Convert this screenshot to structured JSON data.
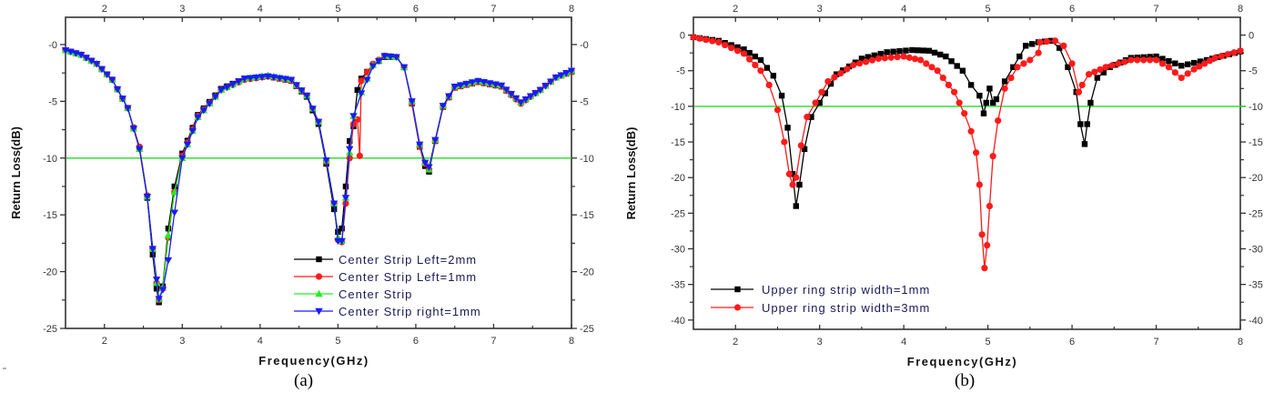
{
  "captions": {
    "a": "(a)",
    "b": "(b)"
  },
  "chart_data": [
    {
      "type": "line",
      "panel": "(a)",
      "title": "",
      "xlabel": "Frequency(GHz)",
      "ylabel": "Return Loss(dB)",
      "xlim": [
        1.5,
        8
      ],
      "ylim": [
        -25,
        2.4
      ],
      "xticks": [
        2,
        3,
        4,
        5,
        6,
        7,
        8
      ],
      "yticks": [
        0,
        -5,
        -10,
        -15,
        -20,
        -25
      ],
      "ytick_labels": [
        "-0",
        "-5",
        "-10",
        "-15",
        "-20",
        "-25"
      ],
      "right_axis_ticks": [
        "-0",
        "-5",
        "-10",
        "-15",
        "-20",
        "-25"
      ],
      "top_axis_ticks": [
        "2",
        "3",
        "4",
        "5",
        "6",
        "7",
        "8"
      ],
      "grid": false,
      "reference_line": {
        "y": -10,
        "color": "#22dd22"
      },
      "legend_position": "lower right inside",
      "series": [
        {
          "name": "Center Strip Left=2mm",
          "color": "#000000",
          "marker": "square",
          "x": [
            1.5,
            1.7,
            1.9,
            2.1,
            2.3,
            2.45,
            2.55,
            2.62,
            2.67,
            2.7,
            2.75,
            2.82,
            2.9,
            3.0,
            3.2,
            3.5,
            3.8,
            4.1,
            4.4,
            4.6,
            4.75,
            4.85,
            4.95,
            5.0,
            5.05,
            5.1,
            5.15,
            5.2,
            5.25,
            5.3,
            5.45,
            5.6,
            5.75,
            5.85,
            5.95,
            6.05,
            6.12,
            6.17,
            6.25,
            6.35,
            6.5,
            6.8,
            7.1,
            7.35,
            7.6,
            7.8,
            8.0
          ],
          "y": [
            -0.5,
            -0.9,
            -1.7,
            -3.1,
            -5.6,
            -9.2,
            -13.5,
            -18.5,
            -21.5,
            -22.7,
            -21.3,
            -16.2,
            -12.5,
            -9.6,
            -6.2,
            -3.9,
            -3.0,
            -2.8,
            -3.2,
            -4.6,
            -7.0,
            -10.5,
            -14.5,
            -16.5,
            -16.2,
            -12.5,
            -8.5,
            -7.2,
            -4.0,
            -3.0,
            -1.8,
            -1.1,
            -1.1,
            -2.0,
            -5.2,
            -9.0,
            -10.7,
            -11.2,
            -8.5,
            -5.5,
            -3.8,
            -3.3,
            -3.7,
            -5.1,
            -4.0,
            -2.9,
            -2.4
          ]
        },
        {
          "name": "Center Strip Left=1mm",
          "color": "#ff1a1a",
          "marker": "circle",
          "x": [
            1.5,
            1.7,
            1.9,
            2.1,
            2.3,
            2.45,
            2.55,
            2.62,
            2.67,
            2.7,
            2.75,
            2.82,
            2.9,
            3.0,
            3.2,
            3.5,
            3.8,
            4.1,
            4.4,
            4.6,
            4.75,
            4.85,
            4.95,
            5.0,
            5.05,
            5.1,
            5.15,
            5.2,
            5.25,
            5.28,
            5.3,
            5.45,
            5.6,
            5.75,
            5.85,
            5.95,
            6.05,
            6.12,
            6.17,
            6.25,
            6.35,
            6.5,
            6.8,
            7.1,
            7.35,
            7.6,
            7.8,
            8.0
          ],
          "y": [
            -0.5,
            -0.9,
            -1.7,
            -3.1,
            -5.6,
            -9.0,
            -13.3,
            -18.0,
            -21.0,
            -22.5,
            -21.5,
            -17.0,
            -13.0,
            -9.8,
            -6.3,
            -4.0,
            -3.1,
            -2.8,
            -3.2,
            -4.5,
            -6.8,
            -10.3,
            -14.0,
            -17.2,
            -17.4,
            -14.0,
            -10.0,
            -7.0,
            -6.6,
            -9.8,
            -3.2,
            -1.7,
            -1.0,
            -1.1,
            -2.0,
            -5.2,
            -9.0,
            -10.5,
            -11.0,
            -8.5,
            -5.5,
            -3.8,
            -3.3,
            -3.7,
            -5.2,
            -4.0,
            -2.9,
            -2.4
          ]
        },
        {
          "name": "Center Strip",
          "color": "#22ee22",
          "marker": "triangle-up",
          "x": [
            1.5,
            1.7,
            1.9,
            2.1,
            2.3,
            2.45,
            2.55,
            2.62,
            2.67,
            2.7,
            2.75,
            2.82,
            2.9,
            3.0,
            3.2,
            3.5,
            3.8,
            4.1,
            4.4,
            4.6,
            4.75,
            4.85,
            4.95,
            5.0,
            5.05,
            5.1,
            5.15,
            5.2,
            5.3,
            5.45,
            5.6,
            5.75,
            5.85,
            5.95,
            6.05,
            6.12,
            6.17,
            6.25,
            6.35,
            6.5,
            6.8,
            7.1,
            7.35,
            7.6,
            7.8,
            8.0
          ],
          "y": [
            -0.5,
            -0.9,
            -1.7,
            -3.1,
            -5.6,
            -9.2,
            -13.4,
            -18.0,
            -21.0,
            -22.4,
            -21.4,
            -16.8,
            -13.0,
            -10.0,
            -6.4,
            -4.0,
            -3.0,
            -2.7,
            -3.1,
            -4.5,
            -6.8,
            -10.2,
            -14.0,
            -17.0,
            -17.3,
            -13.5,
            -9.5,
            -6.3,
            -4.2,
            -1.8,
            -1.0,
            -1.1,
            -2.0,
            -5.0,
            -8.8,
            -10.4,
            -11.0,
            -8.4,
            -5.4,
            -3.7,
            -3.2,
            -3.6,
            -5.1,
            -4.0,
            -2.9,
            -2.3
          ]
        },
        {
          "name": "Center Strip right=1mm",
          "color": "#1a1aff",
          "marker": "triangle-down",
          "x": [
            1.5,
            1.7,
            1.9,
            2.1,
            2.3,
            2.45,
            2.55,
            2.62,
            2.67,
            2.7,
            2.75,
            2.82,
            2.9,
            3.0,
            3.2,
            3.5,
            3.8,
            4.1,
            4.4,
            4.6,
            4.75,
            4.85,
            4.95,
            5.0,
            5.05,
            5.1,
            5.15,
            5.2,
            5.3,
            5.45,
            5.6,
            5.75,
            5.85,
            5.95,
            6.05,
            6.12,
            6.17,
            6.25,
            6.35,
            6.5,
            6.8,
            7.1,
            7.35,
            7.6,
            7.8,
            8.0
          ],
          "y": [
            -0.5,
            -0.9,
            -1.7,
            -3.1,
            -5.6,
            -9.2,
            -13.4,
            -18.0,
            -20.7,
            -22.4,
            -21.6,
            -19.0,
            -14.8,
            -10.0,
            -6.4,
            -4.0,
            -3.0,
            -2.8,
            -3.1,
            -4.5,
            -6.8,
            -10.2,
            -14.0,
            -17.3,
            -17.3,
            -13.5,
            -9.2,
            -6.3,
            -4.3,
            -1.9,
            -1.0,
            -1.1,
            -2.0,
            -5.0,
            -8.8,
            -10.4,
            -10.8,
            -8.4,
            -5.4,
            -3.7,
            -3.2,
            -3.6,
            -5.1,
            -4.0,
            -2.9,
            -2.3
          ]
        }
      ]
    },
    {
      "type": "line",
      "panel": "(b)",
      "title": "",
      "xlabel": "Frequency(GHz)",
      "ylabel": "Return Loss(dB)",
      "xlim": [
        1.5,
        8
      ],
      "ylim": [
        -41.3,
        2.5
      ],
      "xticks": [
        2,
        3,
        4,
        5,
        6,
        7,
        8
      ],
      "yticks": [
        0,
        -5,
        -10,
        -15,
        -20,
        -25,
        -30,
        -35,
        -40
      ],
      "ytick_labels": [
        "0",
        "-5",
        "-10",
        "-15",
        "-20",
        "-25",
        "-30",
        "-35",
        "-40"
      ],
      "right_axis_ticks": [
        "0",
        "-5",
        "-10",
        "-15",
        "-20",
        "-25",
        "-30",
        "-35",
        "-40"
      ],
      "top_axis_ticks": [
        "2",
        "3",
        "4",
        "5",
        "6",
        "7",
        "8"
      ],
      "grid": false,
      "reference_line": {
        "y": -10,
        "color": "#22dd22"
      },
      "legend_position": "lower left inside",
      "series": [
        {
          "name": "Upper ring strip width=1mm",
          "color": "#000000",
          "marker": "square",
          "x": [
            1.5,
            1.8,
            2.1,
            2.3,
            2.45,
            2.55,
            2.62,
            2.68,
            2.72,
            2.76,
            2.82,
            2.9,
            3.0,
            3.2,
            3.5,
            3.8,
            4.1,
            4.3,
            4.5,
            4.7,
            4.8,
            4.9,
            4.95,
            4.98,
            5.02,
            5.06,
            5.1,
            5.2,
            5.3,
            5.45,
            5.6,
            5.75,
            5.85,
            5.95,
            6.05,
            6.1,
            6.15,
            6.18,
            6.22,
            6.3,
            6.45,
            6.7,
            7.0,
            7.3,
            7.6,
            8.0
          ],
          "y": [
            -0.3,
            -0.8,
            -2.0,
            -3.5,
            -5.7,
            -8.5,
            -13.0,
            -19.5,
            -24.0,
            -21.0,
            -16.0,
            -11.5,
            -9.5,
            -5.5,
            -3.3,
            -2.4,
            -2.1,
            -2.2,
            -3.0,
            -5.0,
            -7.0,
            -8.5,
            -11.0,
            -9.5,
            -7.5,
            -9.5,
            -9.0,
            -6.5,
            -4.5,
            -1.5,
            -1.0,
            -0.8,
            -1.8,
            -4.5,
            -8.0,
            -12.5,
            -15.3,
            -12.5,
            -9.5,
            -6.0,
            -4.5,
            -3.2,
            -3.0,
            -4.3,
            -3.5,
            -2.3
          ]
        },
        {
          "name": "Upper ring strip width=3mm",
          "color": "#ff1a1a",
          "marker": "circle",
          "x": [
            1.5,
            1.8,
            2.1,
            2.3,
            2.4,
            2.5,
            2.58,
            2.64,
            2.68,
            2.72,
            2.78,
            2.85,
            2.95,
            3.1,
            3.4,
            3.7,
            4.0,
            4.2,
            4.4,
            4.6,
            4.72,
            4.8,
            4.86,
            4.9,
            4.93,
            4.96,
            4.99,
            5.02,
            5.06,
            5.12,
            5.2,
            5.35,
            5.5,
            5.6,
            5.62,
            5.7,
            5.8,
            5.9,
            6.0,
            6.08,
            6.12,
            6.2,
            6.4,
            6.7,
            7.0,
            7.15,
            7.3,
            7.45,
            7.7,
            8.0
          ],
          "y": [
            -0.3,
            -1.0,
            -2.6,
            -5.0,
            -7.0,
            -10.5,
            -15.0,
            -19.5,
            -21.0,
            -20.0,
            -15.5,
            -11.5,
            -9.5,
            -6.5,
            -4.2,
            -3.3,
            -3.0,
            -3.5,
            -5.0,
            -8.0,
            -11.0,
            -13.5,
            -16.5,
            -21.0,
            -28.0,
            -32.7,
            -29.5,
            -24.0,
            -17.0,
            -12.0,
            -7.5,
            -4.5,
            -3.5,
            -2.5,
            -1.0,
            -0.9,
            -0.8,
            -1.5,
            -4.0,
            -8.0,
            -7.0,
            -5.5,
            -4.5,
            -3.5,
            -3.5,
            -4.5,
            -6.0,
            -4.8,
            -3.2,
            -2.2
          ]
        }
      ]
    }
  ]
}
